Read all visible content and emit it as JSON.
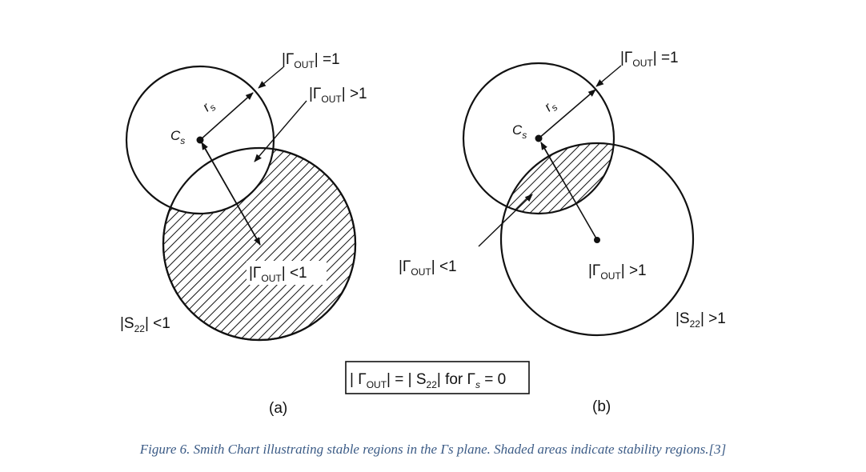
{
  "panel_a": {
    "gamma_unit": {
      "base": "|Γ",
      "sub": "OUT",
      "rest": "| =1"
    },
    "gamma_gt": {
      "base": "|Γ",
      "sub": "OUT",
      "rest": "| >1"
    },
    "gamma_lt": {
      "base": "|Γ",
      "sub": "OUT",
      "rest": "| <1"
    },
    "rs": {
      "base": "r",
      "sub": "s"
    },
    "cs": {
      "base": "C",
      "sub": "s"
    },
    "s22": {
      "base": "|S",
      "sub": "22",
      "rest": "| <1"
    },
    "label": "(a)"
  },
  "panel_b": {
    "gamma_unit": {
      "base": "|Γ",
      "sub": "OUT",
      "rest": "| =1"
    },
    "gamma_lt": {
      "base": "|Γ",
      "sub": "OUT",
      "rest": "| <1"
    },
    "gamma_gt": {
      "base": "|Γ",
      "sub": "OUT",
      "rest": "| >1"
    },
    "rs": {
      "base": "r",
      "sub": "s"
    },
    "cs": {
      "base": "C",
      "sub": "s"
    },
    "s22": {
      "base": "|S",
      "sub": "22",
      "rest": "| >1"
    },
    "label": "(b)"
  },
  "box": {
    "p1": "| Γ",
    "p1sub": "OUT",
    "p2": "| = | S",
    "p2sub": "22",
    "p3": "| for Γ",
    "p3sub": "s",
    "p4": " = 0"
  },
  "caption": "Figure 6. Smith Chart illustrating stable regions in the Γs plane. Shaded areas indicate stability regions.[3]"
}
